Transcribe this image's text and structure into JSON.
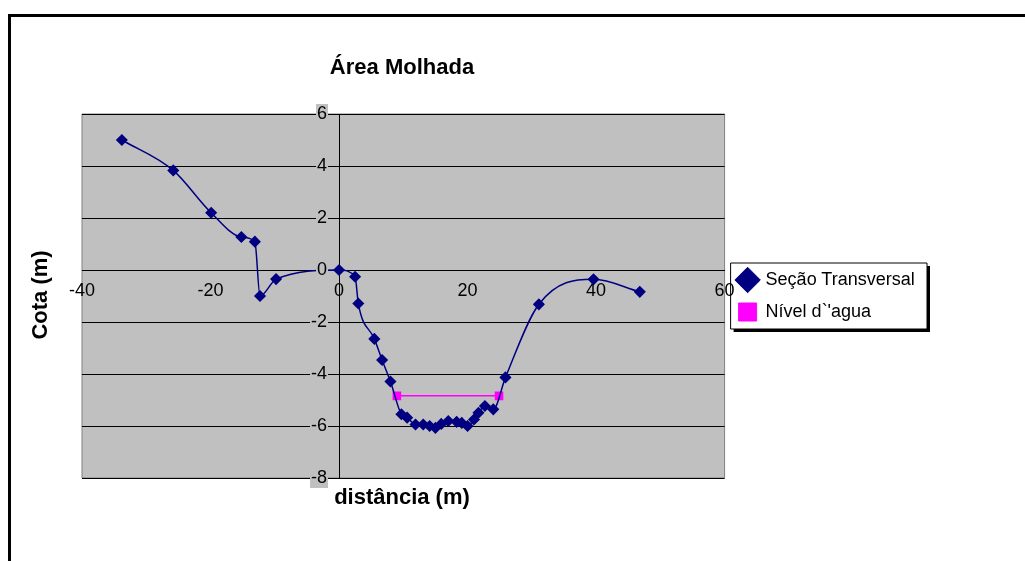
{
  "chart_data": {
    "type": "line",
    "title": "Área Molhada",
    "xlabel": "distância (m)",
    "ylabel": "Cota (m)",
    "xlim": [
      -40,
      60
    ],
    "xticks": [
      -40,
      -20,
      0,
      20,
      40,
      60
    ],
    "ylim": [
      -8,
      6
    ],
    "yticks": [
      -8,
      -6,
      -4,
      -2,
      0,
      2,
      4,
      6
    ],
    "grid": "y",
    "legend": "right",
    "series": [
      {
        "name": "Seção Transversal",
        "color": "#000080",
        "marker": "diamond",
        "x": [
          -33.8,
          -25.8,
          -19.9,
          -15.2,
          -13.1,
          -12.3,
          -9.8,
          0,
          2.5,
          3.0,
          5.5,
          6.7,
          8.0,
          9.7,
          10.6,
          11.9,
          13.1,
          14.1,
          15.0,
          15.9,
          17.0,
          18.3,
          19.1,
          20.0,
          21.0,
          21.7,
          22.7,
          24.0,
          25.9,
          31.1,
          39.6,
          46.8
        ],
        "values": [
          5.0,
          3.83,
          2.2,
          1.27,
          1.09,
          -1.0,
          -0.35,
          0,
          -0.26,
          -1.29,
          -2.65,
          -3.46,
          -4.29,
          -5.55,
          -5.68,
          -5.94,
          -5.94,
          -6.0,
          -6.07,
          -5.92,
          -5.81,
          -5.84,
          -5.88,
          -6.0,
          -5.75,
          -5.49,
          -5.23,
          -5.36,
          -4.13,
          -1.32,
          -0.36,
          -0.84
        ]
      },
      {
        "name": "Nível d`'agua",
        "color": "#ff00ff",
        "marker": "square",
        "x": [
          9.0,
          24.9
        ],
        "values": [
          -4.84,
          -4.84
        ]
      }
    ]
  }
}
